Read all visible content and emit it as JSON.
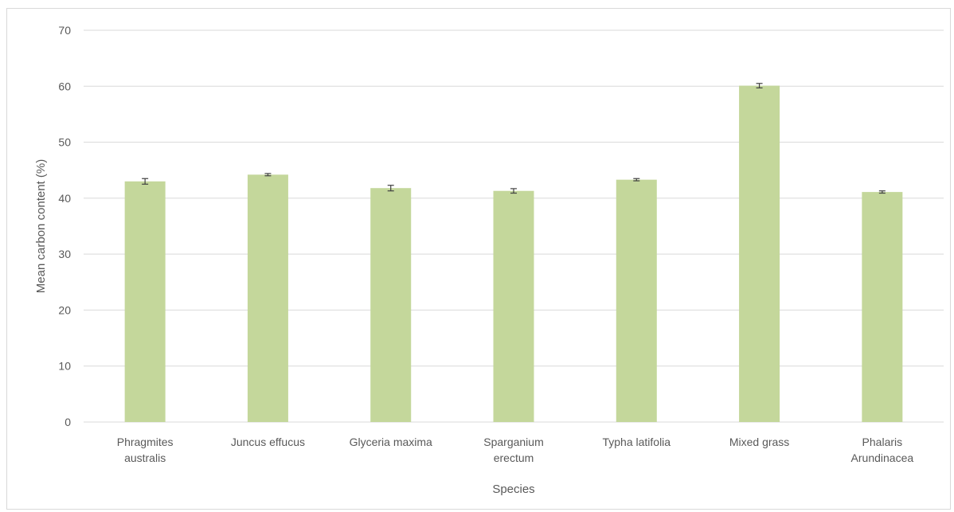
{
  "chart_data": {
    "type": "bar",
    "title": "",
    "xlabel": "Species",
    "ylabel": "Mean carbon content (%)",
    "ylim": [
      0,
      70
    ],
    "yticks": [
      0,
      10,
      20,
      30,
      40,
      50,
      60,
      70
    ],
    "grid": true,
    "legend": "none",
    "categories": [
      [
        "Phragmites",
        "australis"
      ],
      [
        "Juncus effucus"
      ],
      [
        "Glyceria maxima"
      ],
      [
        "Sparganium",
        "erectum"
      ],
      [
        "Typha latifolia"
      ],
      [
        "Mixed grass"
      ],
      [
        "Phalaris",
        "Arundinacea"
      ]
    ],
    "values": [
      43.0,
      44.2,
      41.8,
      41.3,
      43.3,
      60.1,
      41.1
    ],
    "errors": [
      0.5,
      0.2,
      0.5,
      0.4,
      0.2,
      0.4,
      0.2
    ],
    "bar_color": "#c4d79b",
    "error_bar_color": "#404040",
    "grid_color": "#d9d9d9",
    "text_color": "#595959"
  }
}
